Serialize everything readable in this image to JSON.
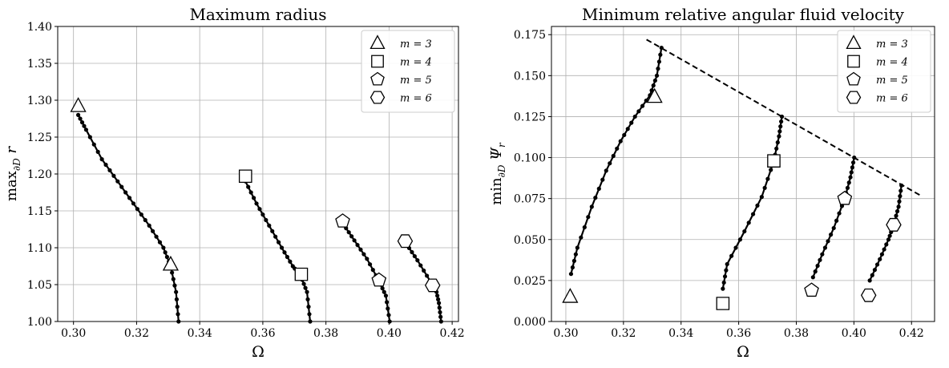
{
  "chart_data": [
    {
      "type": "line",
      "title": "Maximum radius",
      "xlabel": "Ω",
      "ylabel": "max∂D r",
      "ylabel_main": "max",
      "ylabel_sub": "∂D",
      "ylabel_var": " r",
      "xlim": [
        0.295,
        0.422
      ],
      "ylim": [
        1.0,
        1.4
      ],
      "xticks": [
        0.3,
        0.32,
        0.34,
        0.36,
        0.38,
        0.4,
        0.42
      ],
      "yticks": [
        1.0,
        1.05,
        1.1,
        1.15,
        1.2,
        1.25,
        1.3,
        1.35,
        1.4
      ],
      "xtick_labels": [
        "0.30",
        "0.32",
        "0.34",
        "0.36",
        "0.38",
        "0.40",
        "0.42"
      ],
      "ytick_labels": [
        "1.00",
        "1.05",
        "1.10",
        "1.15",
        "1.20",
        "1.25",
        "1.30",
        "1.35",
        "1.40"
      ],
      "grid": true,
      "legend_position": "top-right",
      "legend": [
        {
          "marker": "triangle",
          "label": "m = 3"
        },
        {
          "marker": "square",
          "label": "m = 4"
        },
        {
          "marker": "pentagon",
          "label": "m = 5"
        },
        {
          "marker": "hexagon",
          "label": "m = 6"
        }
      ],
      "series": [
        {
          "m": 3,
          "curve": [
            [
              0.3015,
              1.28
            ],
            [
              0.304,
              1.26
            ],
            [
              0.309,
              1.22
            ],
            [
              0.314,
              1.19
            ],
            [
              0.319,
              1.16
            ],
            [
              0.324,
              1.13
            ],
            [
              0.3285,
              1.1
            ],
            [
              0.3308,
              1.075
            ],
            [
              0.3325,
              1.04
            ],
            [
              0.3333,
              1.0
            ]
          ],
          "markers": [
            [
              0.3015,
              1.292
            ],
            [
              0.3308,
              1.077
            ]
          ]
        },
        {
          "m": 4,
          "curve": [
            [
              0.3545,
              1.19
            ],
            [
              0.358,
              1.16
            ],
            [
              0.362,
              1.13
            ],
            [
              0.366,
              1.1
            ],
            [
              0.3695,
              1.075
            ],
            [
              0.372,
              1.062
            ],
            [
              0.374,
              1.04
            ],
            [
              0.375,
              1.0
            ]
          ],
          "markers": [
            [
              0.3545,
              1.197
            ],
            [
              0.3722,
              1.064
            ]
          ]
        },
        {
          "m": 5,
          "curve": [
            [
              0.3855,
              1.132
            ],
            [
              0.389,
              1.11
            ],
            [
              0.393,
              1.085
            ],
            [
              0.3968,
              1.055
            ],
            [
              0.399,
              1.035
            ],
            [
              0.4002,
              1.0
            ]
          ],
          "markers": [
            [
              0.3853,
              1.136
            ],
            [
              0.3968,
              1.056
            ]
          ]
        },
        {
          "m": 6,
          "curve": [
            [
              0.4055,
              1.105
            ],
            [
              0.409,
              1.083
            ],
            [
              0.413,
              1.055
            ],
            [
              0.4148,
              1.045
            ],
            [
              0.4158,
              1.025
            ],
            [
              0.4165,
              1.0
            ]
          ],
          "markers": [
            [
              0.4051,
              1.109
            ],
            [
              0.4138,
              1.049
            ]
          ]
        }
      ]
    },
    {
      "type": "line",
      "title": "Minimum relative angular fluid velocity",
      "xlabel": "Ω",
      "ylabel": "min∂D Ψr",
      "ylabel_main": "min",
      "ylabel_sub": "∂D",
      "ylabel_var": " Ψ",
      "ylabel_var_sub": "r",
      "xlim": [
        0.295,
        0.428
      ],
      "ylim": [
        0.0,
        0.18
      ],
      "xticks": [
        0.3,
        0.32,
        0.34,
        0.36,
        0.38,
        0.4,
        0.42
      ],
      "yticks": [
        0.0,
        0.025,
        0.05,
        0.075,
        0.1,
        0.125,
        0.15,
        0.175
      ],
      "xtick_labels": [
        "0.30",
        "0.32",
        "0.34",
        "0.36",
        "0.38",
        "0.40",
        "0.42"
      ],
      "ytick_labels": [
        "0.000",
        "0.025",
        "0.050",
        "0.075",
        "0.100",
        "0.125",
        "0.150",
        "0.175"
      ],
      "grid": true,
      "legend_position": "top-right",
      "legend": [
        {
          "marker": "triangle",
          "label": "m = 3"
        },
        {
          "marker": "square",
          "label": "m = 4"
        },
        {
          "marker": "pentagon",
          "label": "m = 5"
        },
        {
          "marker": "hexagon",
          "label": "m = 6"
        }
      ],
      "dashed_line": [
        [
          0.328,
          0.172
        ],
        [
          0.423,
          0.077
        ]
      ],
      "series": [
        {
          "m": 3,
          "curve": [
            [
              0.3018,
              0.029
            ],
            [
              0.304,
              0.045
            ],
            [
              0.309,
              0.07
            ],
            [
              0.314,
              0.092
            ],
            [
              0.319,
              0.11
            ],
            [
              0.324,
              0.125
            ],
            [
              0.3292,
              0.138
            ],
            [
              0.3316,
              0.15
            ],
            [
              0.3332,
              0.167
            ]
          ],
          "markers": [
            [
              0.3015,
              0.015
            ],
            [
              0.3308,
              0.137
            ]
          ]
        },
        {
          "m": 4,
          "curve": [
            [
              0.3545,
              0.02
            ],
            [
              0.356,
              0.035
            ],
            [
              0.362,
              0.055
            ],
            [
              0.368,
              0.076
            ],
            [
              0.3722,
              0.098
            ],
            [
              0.374,
              0.113
            ],
            [
              0.375,
              0.125
            ]
          ],
          "markers": [
            [
              0.3545,
              0.011
            ],
            [
              0.3722,
              0.098
            ]
          ]
        },
        {
          "m": 5,
          "curve": [
            [
              0.3858,
              0.027
            ],
            [
              0.389,
              0.041
            ],
            [
              0.393,
              0.057
            ],
            [
              0.3968,
              0.075
            ],
            [
              0.3988,
              0.088
            ],
            [
              0.4001,
              0.1
            ]
          ],
          "markers": [
            [
              0.3853,
              0.019
            ],
            [
              0.3968,
              0.075
            ]
          ]
        },
        {
          "m": 6,
          "curve": [
            [
              0.4055,
              0.025
            ],
            [
              0.409,
              0.038
            ],
            [
              0.412,
              0.05
            ],
            [
              0.4138,
              0.059
            ],
            [
              0.4155,
              0.07
            ],
            [
              0.4165,
              0.083
            ]
          ],
          "markers": [
            [
              0.4051,
              0.016
            ],
            [
              0.4138,
              0.059
            ]
          ]
        }
      ]
    }
  ]
}
